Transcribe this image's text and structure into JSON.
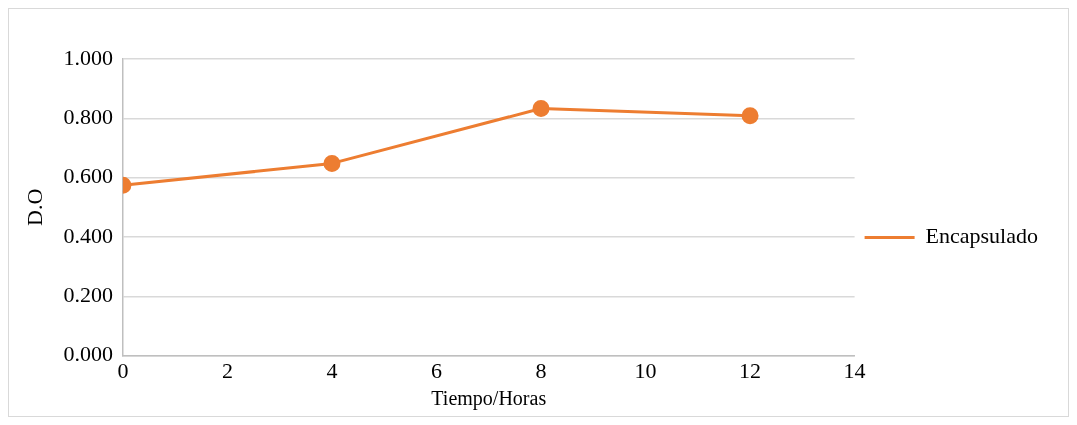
{
  "chart_data": {
    "type": "line",
    "xlabel": "Tiempo/Horas",
    "ylabel": "D.O",
    "x": [
      0,
      4,
      8,
      12
    ],
    "series": [
      {
        "name": "Encapsulado",
        "color": "#ed7d31",
        "values": [
          0.574,
          0.648,
          0.833,
          0.809
        ]
      }
    ],
    "xlim": [
      0,
      14
    ],
    "xticks": [
      0,
      2,
      4,
      6,
      8,
      10,
      12,
      14
    ],
    "ylim": [
      0,
      1
    ],
    "yticks": [
      {
        "value": 0,
        "label": "0.000"
      },
      {
        "value": 0.2,
        "label": "0.200"
      },
      {
        "value": 0.4,
        "label": "0.400"
      },
      {
        "value": 0.6,
        "label": "0.600"
      },
      {
        "value": 0.8,
        "label": "0.800"
      },
      {
        "value": 1,
        "label": "1.000"
      }
    ],
    "grid": "y",
    "legend": "right",
    "marker": "circle",
    "line_style": "solid"
  }
}
